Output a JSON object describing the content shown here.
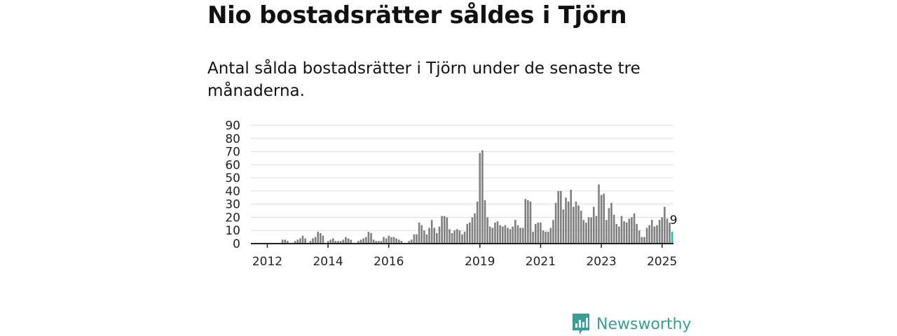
{
  "header": {
    "title": "Nio bostadsrätter såldes i Tjörn",
    "subtitle": "Antal sålda bostadsrätter i Tjörn under de senaste tre månaderna."
  },
  "brand": {
    "name": "Newsworthy",
    "color": "#3a9e96"
  },
  "colors": {
    "bar": "#7f7f7f",
    "highlight": "#2bb5ad",
    "grid": "#dddddd",
    "axis": "#222222"
  },
  "chart_data": {
    "type": "bar",
    "title": "",
    "xlabel": "",
    "ylabel": "",
    "ylim": [
      0,
      90
    ],
    "yticks": [
      0,
      10,
      20,
      30,
      40,
      50,
      60,
      70,
      80,
      90
    ],
    "xticks": [
      "2012",
      "2014",
      "2016",
      "2019",
      "2021",
      "2023",
      "2025"
    ],
    "xtick_indices": [
      6,
      30,
      54,
      90,
      114,
      138,
      162
    ],
    "highlight_label": "9",
    "values": [
      0,
      0,
      0,
      0,
      0,
      0,
      0,
      0,
      0,
      0,
      0,
      0,
      3,
      3,
      2,
      0,
      0,
      2,
      3,
      4,
      6,
      4,
      0,
      2,
      4,
      5,
      9,
      8,
      6,
      0,
      2,
      3,
      4,
      2,
      2,
      2,
      3,
      5,
      4,
      3,
      0,
      0,
      2,
      3,
      4,
      5,
      9,
      8,
      3,
      2,
      2,
      2,
      5,
      4,
      6,
      5,
      5,
      4,
      3,
      2,
      0,
      0,
      2,
      3,
      7,
      7,
      16,
      14,
      10,
      7,
      12,
      18,
      12,
      8,
      13,
      21,
      21,
      20,
      11,
      8,
      10,
      11,
      10,
      7,
      9,
      15,
      16,
      20,
      23,
      32,
      69,
      71,
      33,
      20,
      13,
      12,
      16,
      17,
      14,
      13,
      14,
      12,
      11,
      13,
      18,
      14,
      12,
      12,
      34,
      33,
      32,
      9,
      15,
      16,
      16,
      10,
      9,
      9,
      12,
      18,
      31,
      40,
      40,
      26,
      35,
      32,
      41,
      28,
      32,
      29,
      25,
      18,
      16,
      20,
      20,
      28,
      21,
      45,
      37,
      38,
      18,
      27,
      31,
      22,
      15,
      13,
      21,
      17,
      16,
      19,
      20,
      23,
      15,
      10,
      5,
      5,
      12,
      14,
      18,
      13,
      14,
      18,
      20,
      28,
      19,
      16,
      9
    ],
    "grid": true,
    "legend": "none"
  }
}
